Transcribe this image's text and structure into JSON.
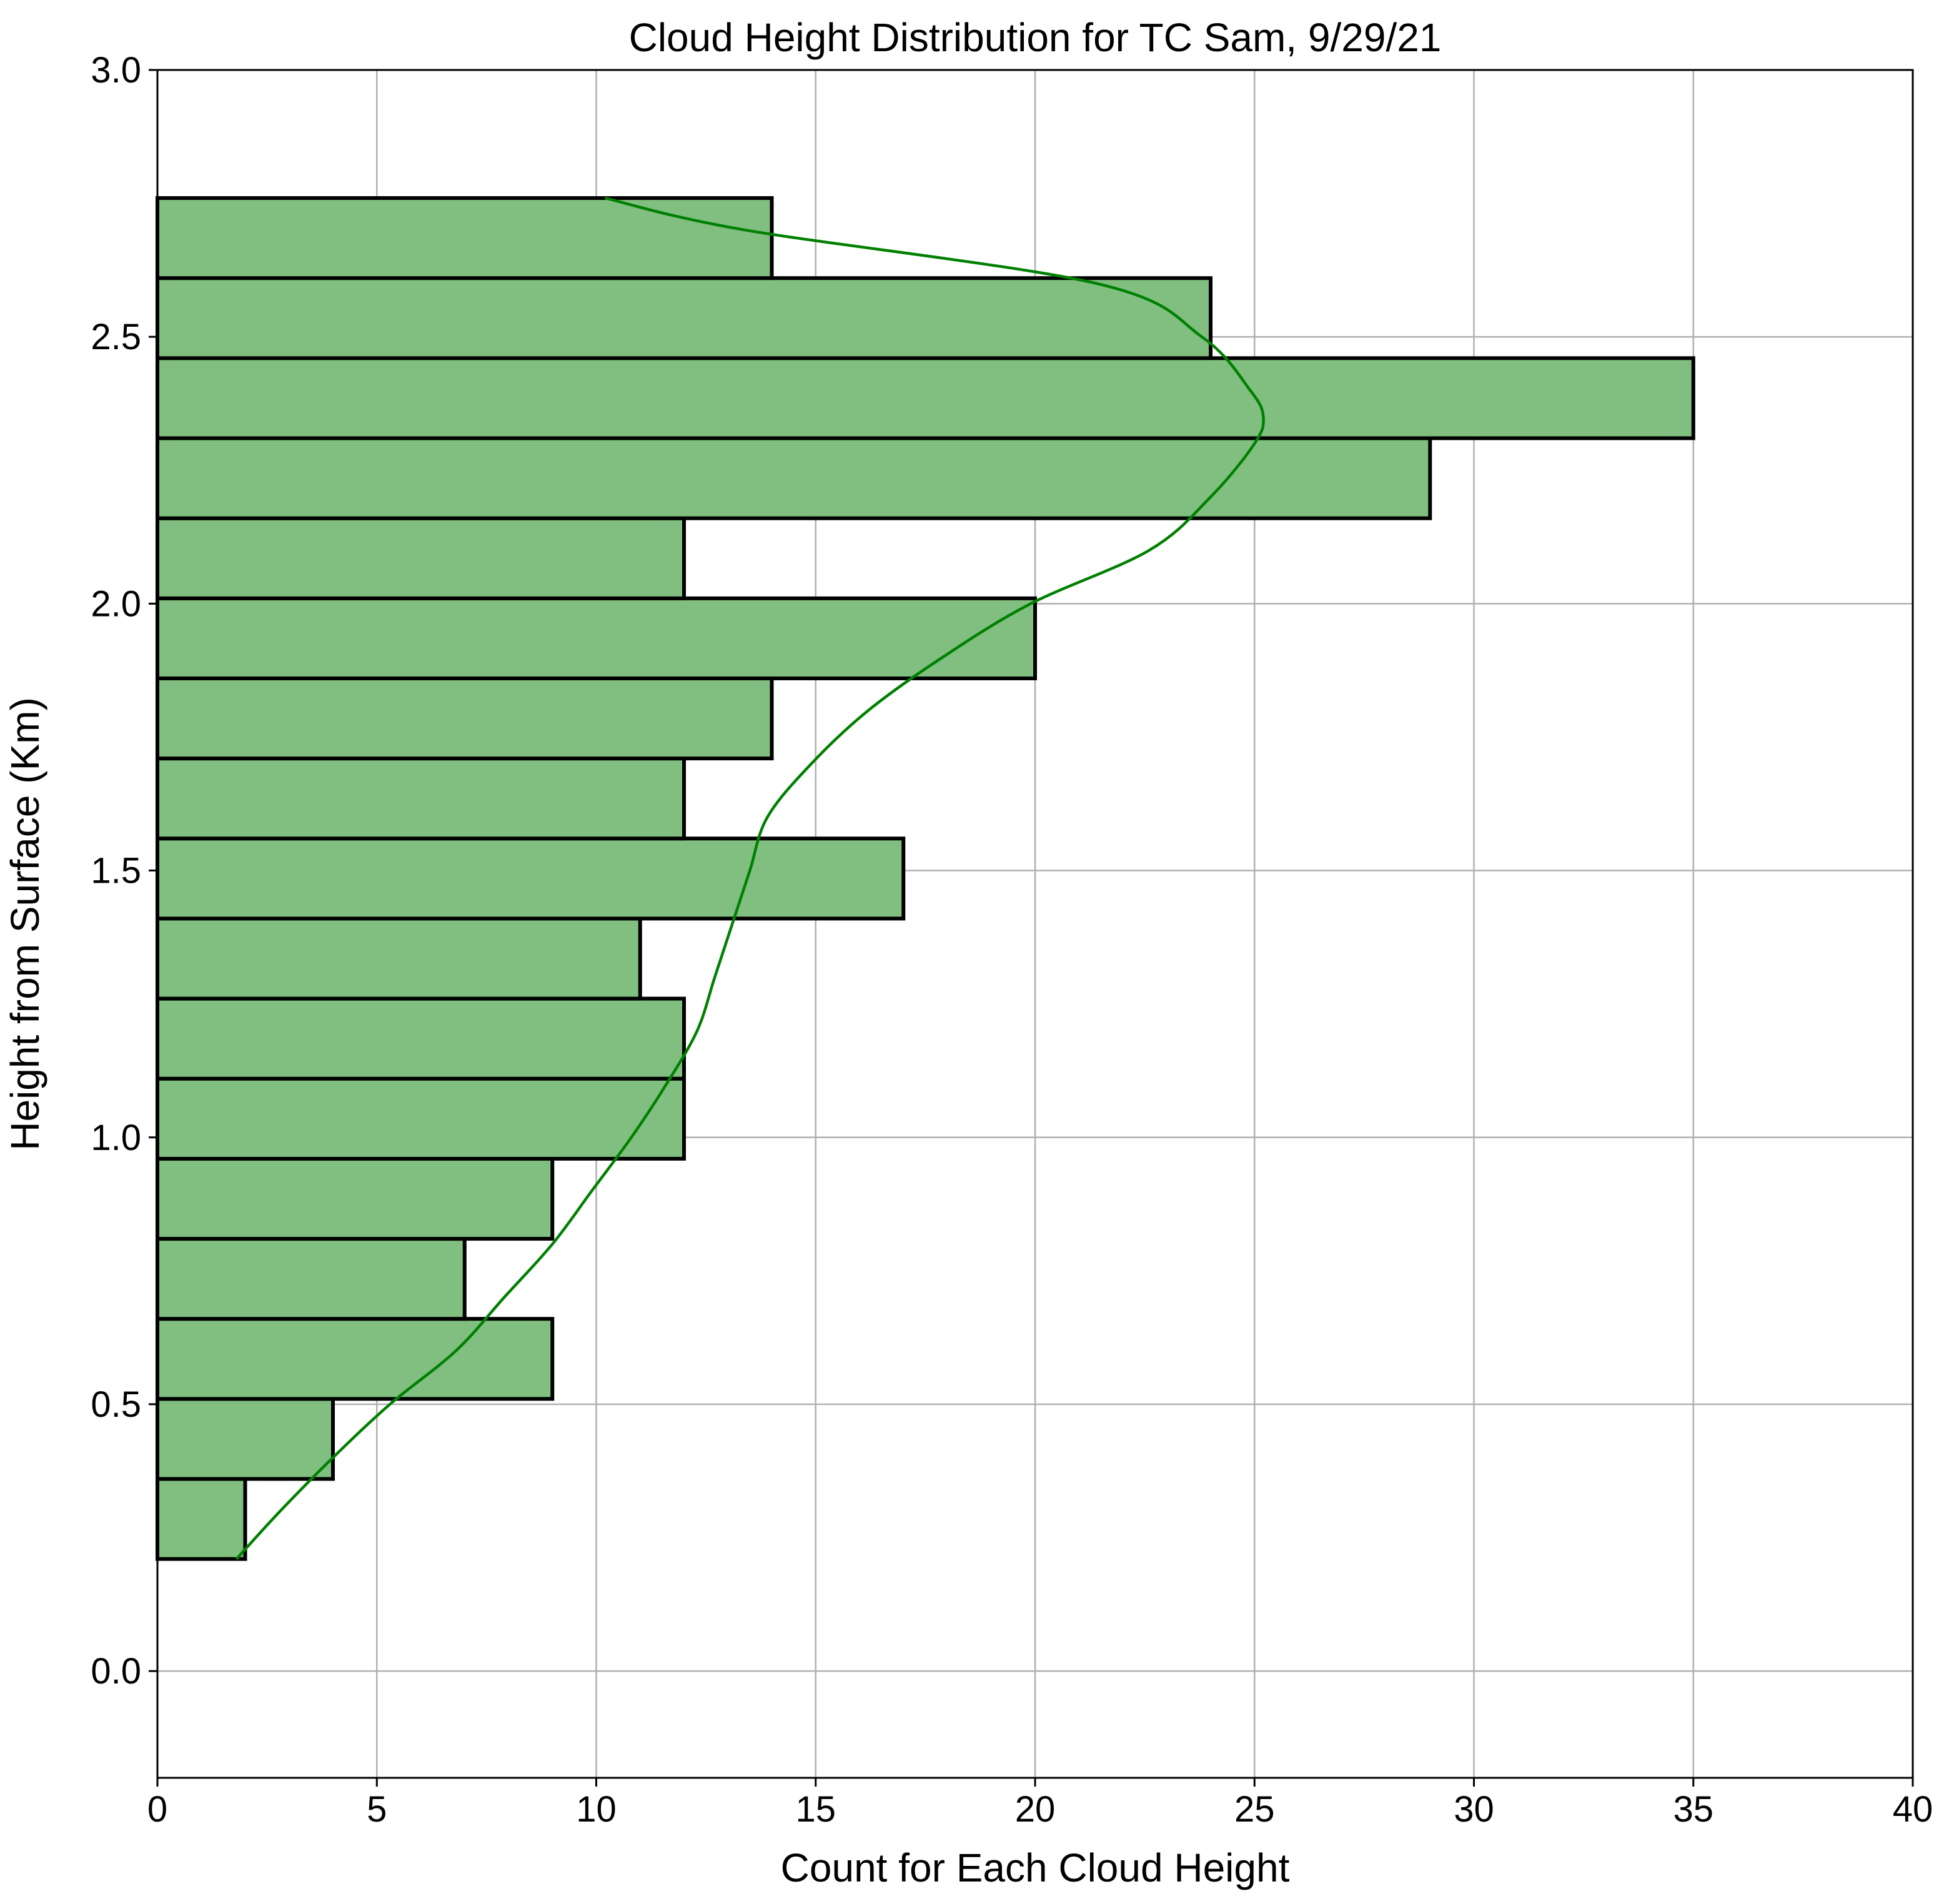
{
  "chart_data": {
    "type": "bar",
    "orientation": "horizontal",
    "title": "Cloud Height Distribution for TC Sam, 9/29/21",
    "xlabel": "Count for Each Cloud Height",
    "ylabel": "Height from Surface (Km)",
    "xlim": [
      0,
      40
    ],
    "ylim": [
      -0.2,
      3.0
    ],
    "x_ticks": [
      0,
      5,
      10,
      15,
      20,
      25,
      30,
      35,
      40
    ],
    "y_ticks": [
      0.0,
      0.5,
      1.0,
      1.5,
      2.0,
      2.5,
      3.0
    ],
    "x_tick_labels": [
      "0",
      "5",
      "10",
      "15",
      "20",
      "25",
      "30",
      "35",
      "40"
    ],
    "y_tick_labels": [
      "0.0",
      "0.5",
      "1.0",
      "1.5",
      "2.0",
      "2.5",
      "3.0"
    ],
    "grid": true,
    "legend": "none",
    "bar_color": "#80bf80",
    "bar_edge_color": "#000000",
    "kde_color": "#008000",
    "bins": [
      {
        "low": 0.21,
        "high": 0.36,
        "count": 2
      },
      {
        "low": 0.36,
        "high": 0.51,
        "count": 4
      },
      {
        "low": 0.51,
        "high": 0.66,
        "count": 9
      },
      {
        "low": 0.66,
        "high": 0.81,
        "count": 7
      },
      {
        "low": 0.81,
        "high": 0.96,
        "count": 9
      },
      {
        "low": 0.96,
        "high": 1.11,
        "count": 12
      },
      {
        "low": 1.11,
        "high": 1.26,
        "count": 12
      },
      {
        "low": 1.26,
        "high": 1.41,
        "count": 11
      },
      {
        "low": 1.41,
        "high": 1.56,
        "count": 17
      },
      {
        "low": 1.56,
        "high": 1.71,
        "count": 12
      },
      {
        "low": 1.71,
        "high": 1.86,
        "count": 14
      },
      {
        "low": 1.86,
        "high": 2.01,
        "count": 20
      },
      {
        "low": 2.01,
        "high": 2.16,
        "count": 12
      },
      {
        "low": 2.16,
        "high": 2.31,
        "count": 29
      },
      {
        "low": 2.31,
        "high": 2.46,
        "count": 35
      },
      {
        "low": 2.46,
        "high": 2.61,
        "count": 24
      },
      {
        "low": 2.61,
        "high": 2.76,
        "count": 14
      }
    ],
    "kde": {
      "height": [
        0.21,
        0.3,
        0.4,
        0.5,
        0.6,
        0.7,
        0.8,
        0.9,
        1.0,
        1.1,
        1.2,
        1.3,
        1.4,
        1.5,
        1.6,
        1.7,
        1.8,
        1.9,
        2.0,
        2.1,
        2.2,
        2.3,
        2.35,
        2.4,
        2.5,
        2.6,
        2.7,
        2.76
      ],
      "count": [
        1.8,
        2.8,
        4.0,
        5.3,
        6.8,
        7.9,
        9.0,
        9.9,
        10.8,
        11.6,
        12.3,
        12.7,
        13.1,
        13.5,
        13.9,
        14.9,
        16.2,
        17.9,
        19.9,
        22.6,
        24.0,
        25.0,
        25.2,
        24.9,
        23.8,
        21.4,
        13.4,
        10.2
      ]
    }
  }
}
